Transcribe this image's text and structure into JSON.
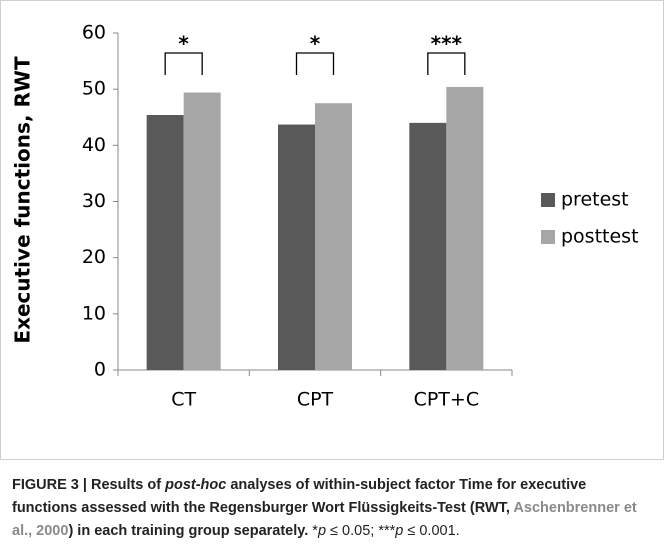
{
  "chart_data": {
    "type": "bar",
    "y_label": "Executive functions, RWT",
    "categories": [
      "CT",
      "CPT",
      "CPT+C"
    ],
    "series": [
      {
        "name": "pretest",
        "color": "#595959",
        "values": [
          45.4,
          43.7,
          44.0
        ]
      },
      {
        "name": "posttest",
        "color": "#a6a6a6",
        "values": [
          49.4,
          47.5,
          50.4
        ]
      }
    ],
    "annotations": [
      "*",
      "*",
      "***"
    ],
    "ylim": [
      0,
      60
    ],
    "yticks": [
      0,
      10,
      20,
      30,
      40,
      50,
      60
    ],
    "grid": false,
    "legend": "right"
  },
  "caption": {
    "segments": [
      "FIGURE 3 | Results of ",
      "post-hoc",
      " analyses of within-subject factor Time for executive functions assessed with the Regensburger Wort Flüssigkeits-Test (RWT, ",
      "Aschenbrenner et al., 2000",
      ") in each training group separately.",
      " *",
      "p",
      " ≤ 0.05; ***",
      "p",
      " ≤ 0.001."
    ]
  }
}
